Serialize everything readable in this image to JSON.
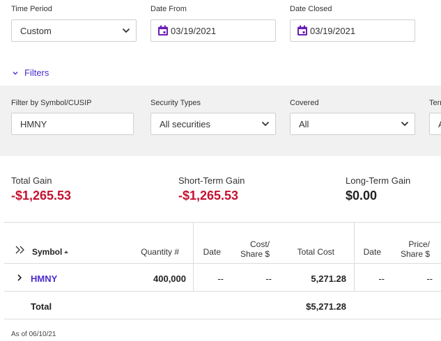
{
  "criteria": {
    "time_period": {
      "label": "Time Period",
      "value": "Custom"
    },
    "date_from": {
      "label": "Date From",
      "value": "03/19/2021"
    },
    "date_closed": {
      "label": "Date Closed",
      "value": "03/19/2021"
    }
  },
  "filters_toggle": "Filters",
  "filters": {
    "symbol": {
      "label": "Filter by Symbol/CUSIP",
      "value": "HMNY"
    },
    "security_types": {
      "label": "Security Types",
      "value": "All securities"
    },
    "covered": {
      "label": "Covered",
      "value": "All"
    },
    "term": {
      "label": "Term",
      "value": "A"
    }
  },
  "summary": {
    "total_gain": {
      "label": "Total Gain",
      "value": "-$1,265.53"
    },
    "short_term": {
      "label": "Short-Term Gain",
      "value": "-$1,265.53"
    },
    "long_term": {
      "label": "Long-Term Gain",
      "value": "$0.00"
    }
  },
  "table": {
    "headers": {
      "symbol": "Symbol",
      "quantity": "Quantity #",
      "date_acquired": "Date",
      "cost_share_1": "Cost/",
      "cost_share_2": "Share $",
      "total_cost": "Total Cost",
      "date_closed": "Date",
      "price_share_1": "Price/",
      "price_share_2": "Share $"
    },
    "row": {
      "symbol": "HMNY",
      "quantity": "400,000",
      "date_acquired": "--",
      "cost_share": "--",
      "total_cost": "5,271.28",
      "date_closed": "--",
      "price_share": "--"
    },
    "total": {
      "label": "Total",
      "total_cost": "$5,271.28"
    }
  },
  "as_of": "As of 06/10/21",
  "colors": {
    "accent": "#4b2bd2",
    "negative": "#c41230",
    "calendar_icon": "#6a1fb5"
  }
}
